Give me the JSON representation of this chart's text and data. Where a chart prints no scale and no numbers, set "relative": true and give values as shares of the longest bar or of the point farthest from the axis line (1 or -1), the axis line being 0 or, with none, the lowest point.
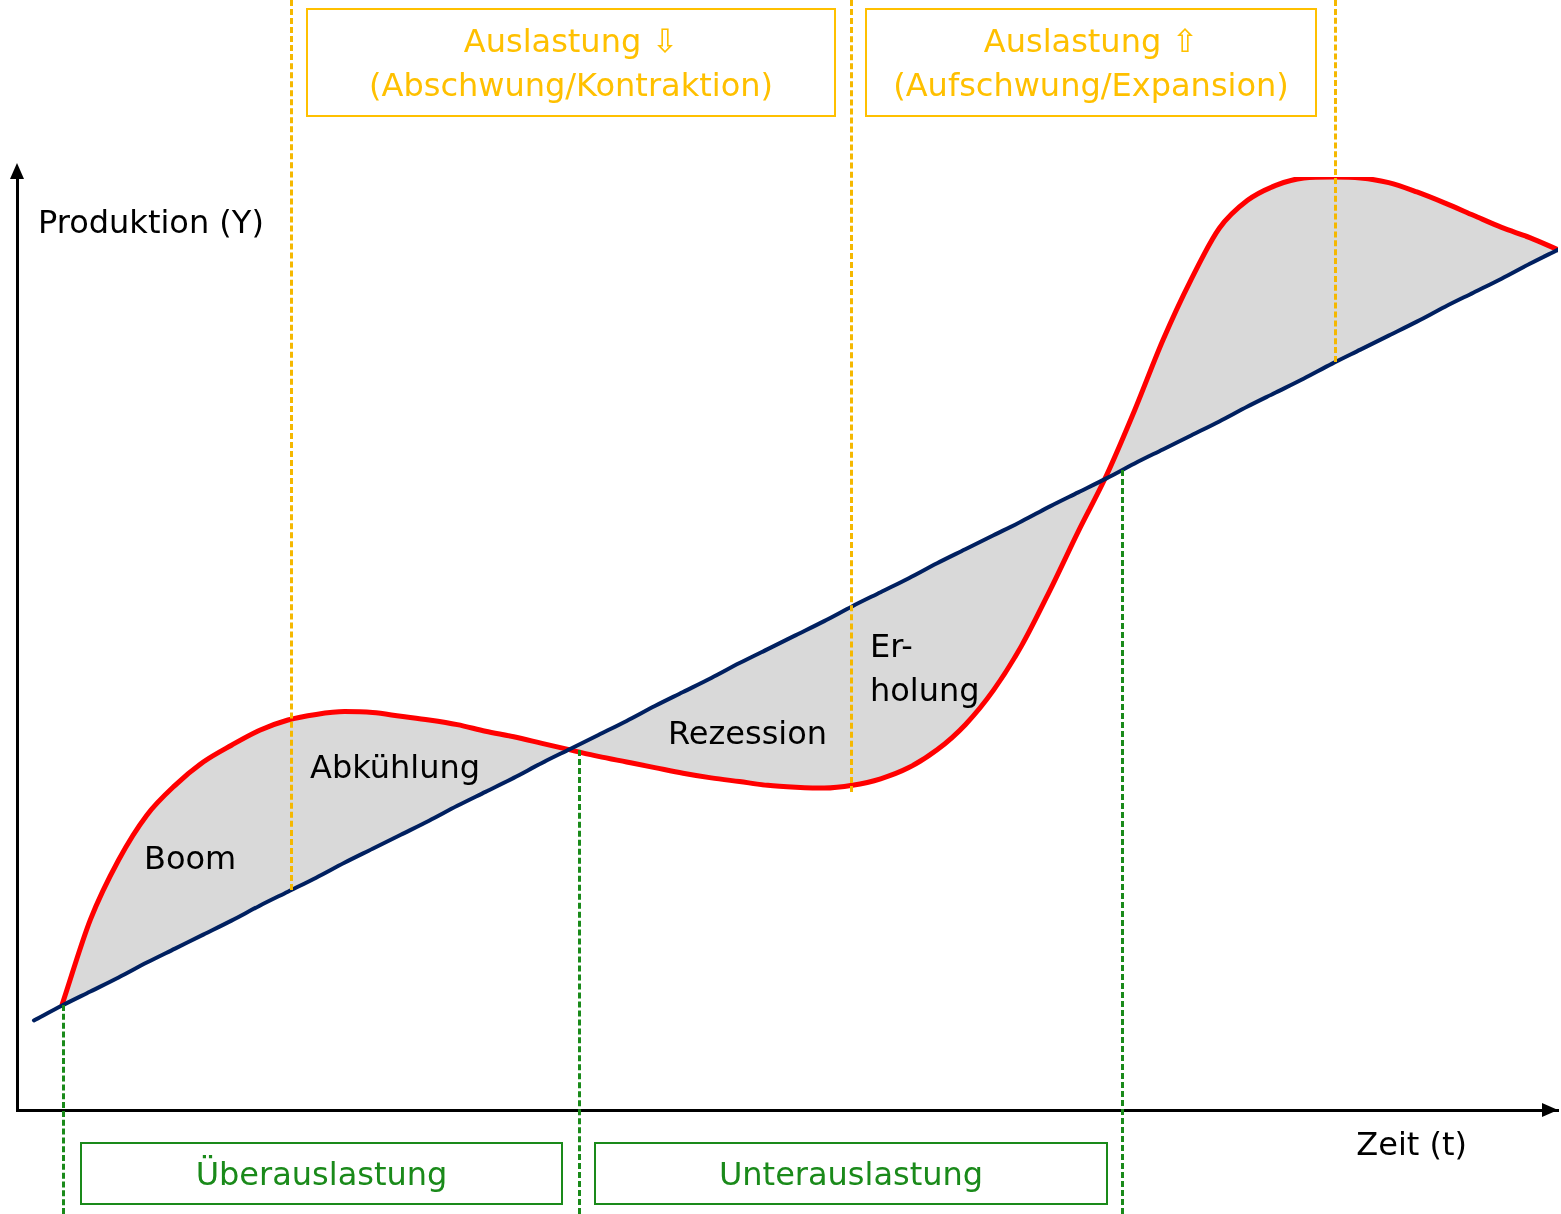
{
  "chart_data": {
    "type": "line",
    "relative": true,
    "xlabel": "Zeit (t)",
    "ylabel": "Produktion (Y)",
    "legend": false,
    "grid": false,
    "marker": "none",
    "line_style": "solid",
    "categories": [
      null,
      null,
      null,
      null,
      null,
      null,
      null,
      null,
      null,
      null,
      null,
      null,
      null,
      null,
      null,
      null,
      null,
      null,
      null,
      null,
      null,
      null,
      null,
      null,
      null,
      null,
      null,
      null,
      null,
      null,
      null,
      null,
      null,
      null,
      null,
      null,
      null,
      null,
      null,
      null,
      null,
      null,
      null,
      null,
      null,
      null,
      null,
      null,
      null,
      null,
      null,
      null,
      null,
      null,
      null
    ],
    "series": [
      {
        "color": "#002060",
        "values": [
          0.096,
          0.112,
          0.127,
          0.142,
          0.158,
          0.173,
          0.188,
          0.203,
          0.219,
          0.234,
          0.249,
          0.265,
          0.28,
          0.295,
          0.31,
          0.326,
          0.341,
          0.356,
          0.372,
          0.387,
          0.402,
          0.417,
          0.433,
          0.448,
          0.463,
          0.479,
          0.494,
          0.509,
          0.524,
          0.54,
          0.555,
          0.57,
          0.586,
          0.601,
          0.616,
          0.631,
          0.647,
          0.662,
          0.677,
          0.693,
          0.708,
          0.723,
          0.738,
          0.754,
          0.769,
          0.784,
          0.8,
          0.815,
          0.83,
          0.845,
          0.861,
          0.876,
          0.891,
          0.907,
          0.922
        ]
      },
      {
        "color": "#ff0000",
        "values": [
          null,
          0.113,
          0.204,
          0.268,
          0.316,
          0.348,
          0.373,
          0.391,
          0.407,
          0.418,
          0.424,
          0.427,
          0.426,
          0.422,
          0.418,
          0.413,
          0.406,
          0.4,
          0.393,
          0.386,
          0.379,
          0.373,
          0.367,
          0.361,
          0.356,
          0.352,
          0.348,
          0.346,
          0.345,
          0.348,
          0.355,
          0.367,
          0.386,
          0.413,
          0.45,
          0.498,
          0.557,
          0.62,
          0.68,
          0.75,
          0.825,
          0.89,
          0.945,
          0.975,
          0.991,
          0.999,
          1,
          0.999,
          0.994,
          0.984,
          0.972,
          0.959,
          0.946,
          0.935,
          0.922
        ]
      }
    ],
    "annotations": [
      "Auslastung ⇩ (Abschwung/Kontraktion)",
      "Auslastung ⇧ (Aufschwung/Expansion)",
      "Überauslastung",
      "Unterauslastung",
      "Boom",
      "Abkühlung",
      "Rezession",
      "Er-\nholung"
    ]
  }
}
